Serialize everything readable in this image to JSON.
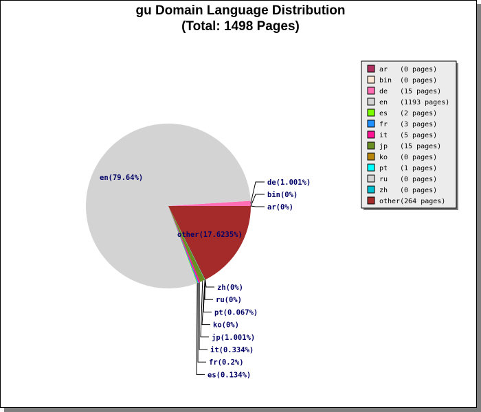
{
  "title_line1": "gu Domain Language Distribution",
  "title_line2": "(Total: 1498 Pages)",
  "chart_data": {
    "type": "pie",
    "title": "gu Domain Language Distribution",
    "subtitle": "(Total: 1498 Pages)",
    "legend_position": "right",
    "slices": [
      {
        "key": "ar",
        "pages": 0,
        "legend_text": "(0 pages)",
        "label": "ar(0%)",
        "color": "#b03060"
      },
      {
        "key": "bin",
        "pages": 0,
        "legend_text": "(0 pages)",
        "label": "bin(0%)",
        "color": "#fae6d2"
      },
      {
        "key": "de",
        "pages": 15,
        "legend_text": "(15 pages)",
        "label": "de(1.001%)",
        "color": "#ff6eb4"
      },
      {
        "key": "en",
        "pages": 1193,
        "legend_text": "(1193 pages)",
        "label": "en(79.64%)",
        "color": "#d3d3d3"
      },
      {
        "key": "es",
        "pages": 2,
        "legend_text": "(2 pages)",
        "label": "es(0.134%)",
        "color": "#7cfc00"
      },
      {
        "key": "fr",
        "pages": 3,
        "legend_text": "(3 pages)",
        "label": "fr(0.2%)",
        "color": "#1e90ff"
      },
      {
        "key": "it",
        "pages": 5,
        "legend_text": "(5 pages)",
        "label": "it(0.334%)",
        "color": "#ff1493"
      },
      {
        "key": "jp",
        "pages": 15,
        "legend_text": "(15 pages)",
        "label": "jp(1.001%)",
        "color": "#6b8e23"
      },
      {
        "key": "ko",
        "pages": 0,
        "legend_text": "(0 pages)",
        "label": "ko(0%)",
        "color": "#b8860b"
      },
      {
        "key": "pt",
        "pages": 1,
        "legend_text": "(1 pages)",
        "label": "pt(0.067%)",
        "color": "#00ffff"
      },
      {
        "key": "ru",
        "pages": 0,
        "legend_text": "(0 pages)",
        "label": "ru(0%)",
        "color": "#d3d3d3"
      },
      {
        "key": "zh",
        "pages": 0,
        "legend_text": "(0 pages)",
        "label": "zh(0%)",
        "color": "#00bfd0"
      },
      {
        "key": "other",
        "pages": 264,
        "legend_text": "(264 pages)",
        "label": "other(17.6235%)",
        "color": "#a52a2a"
      }
    ]
  }
}
